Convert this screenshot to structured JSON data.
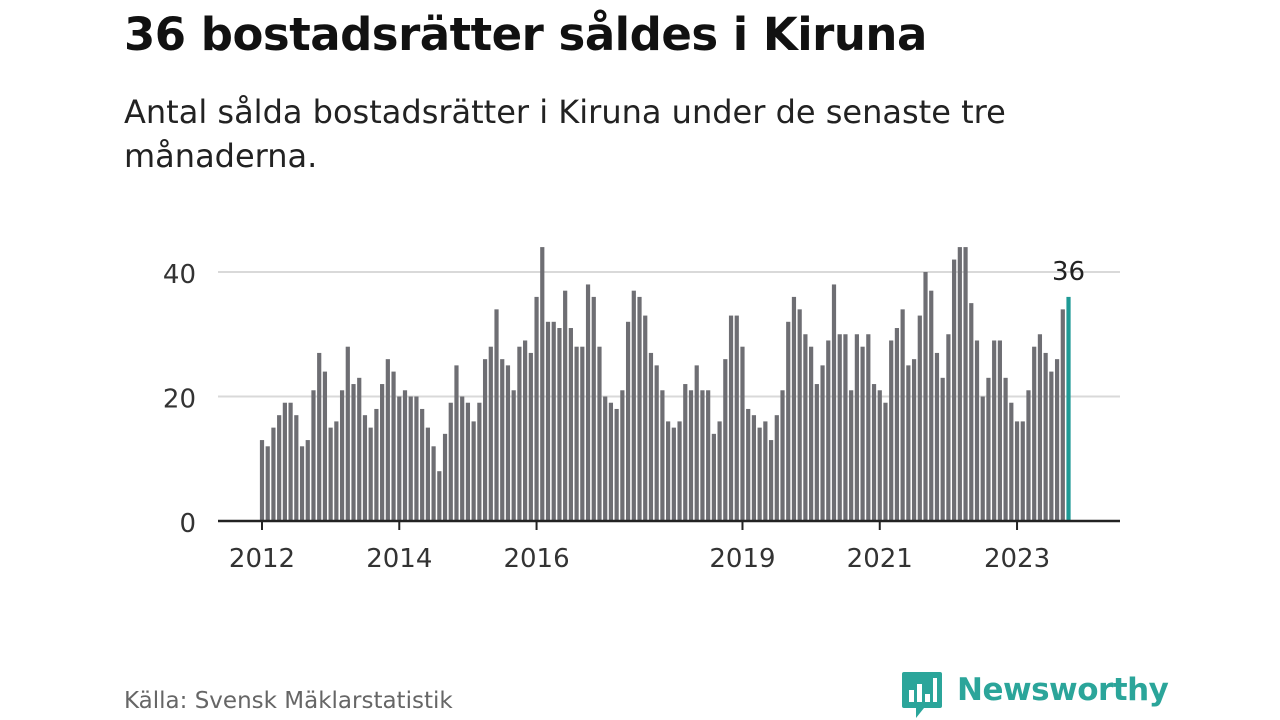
{
  "title": "36 bostadsrätter såldes i Kiruna",
  "subtitle": "Antal sålda bostadsrätter i Kiruna under de senaste tre månaderna.",
  "source": "Källa: Svensk Mäklarstatistik",
  "brand": {
    "name": "Newsworthy",
    "color": "#2ba59a"
  },
  "chart_data": {
    "type": "bar",
    "start": "2012-01",
    "x_ticks": [
      {
        "label": "2012",
        "index": 0
      },
      {
        "label": "2014",
        "index": 24
      },
      {
        "label": "2016",
        "index": 48
      },
      {
        "label": "2019",
        "index": 84
      },
      {
        "label": "2021",
        "index": 108
      },
      {
        "label": "2023",
        "index": 132
      }
    ],
    "y_ticks": [
      0,
      20,
      40
    ],
    "ylim": [
      0,
      45
    ],
    "grid": true,
    "bar_color": "#6e6e73",
    "highlight_color": "#1e9a95",
    "highlight_label": "36",
    "values": [
      13,
      12,
      15,
      17,
      19,
      19,
      17,
      12,
      13,
      21,
      27,
      24,
      15,
      16,
      21,
      28,
      22,
      23,
      17,
      15,
      18,
      22,
      26,
      24,
      20,
      21,
      20,
      20,
      18,
      15,
      12,
      8,
      14,
      19,
      25,
      20,
      19,
      16,
      19,
      26,
      28,
      34,
      26,
      25,
      21,
      28,
      29,
      27,
      36,
      44,
      32,
      32,
      31,
      37,
      31,
      28,
      28,
      38,
      36,
      28,
      20,
      19,
      18,
      21,
      32,
      37,
      36,
      33,
      27,
      25,
      21,
      16,
      15,
      16,
      22,
      21,
      25,
      21,
      21,
      14,
      16,
      26,
      33,
      33,
      28,
      18,
      17,
      15,
      16,
      13,
      17,
      21,
      32,
      36,
      34,
      30,
      28,
      22,
      25,
      29,
      38,
      30,
      30,
      21,
      30,
      28,
      30,
      22,
      21,
      19,
      29,
      31,
      34,
      25,
      26,
      33,
      40,
      37,
      27,
      23,
      30,
      42,
      44,
      44,
      35,
      29,
      20,
      23,
      29,
      29,
      23,
      19,
      16,
      16,
      21,
      28,
      30,
      27,
      24,
      26,
      34,
      36
    ]
  }
}
